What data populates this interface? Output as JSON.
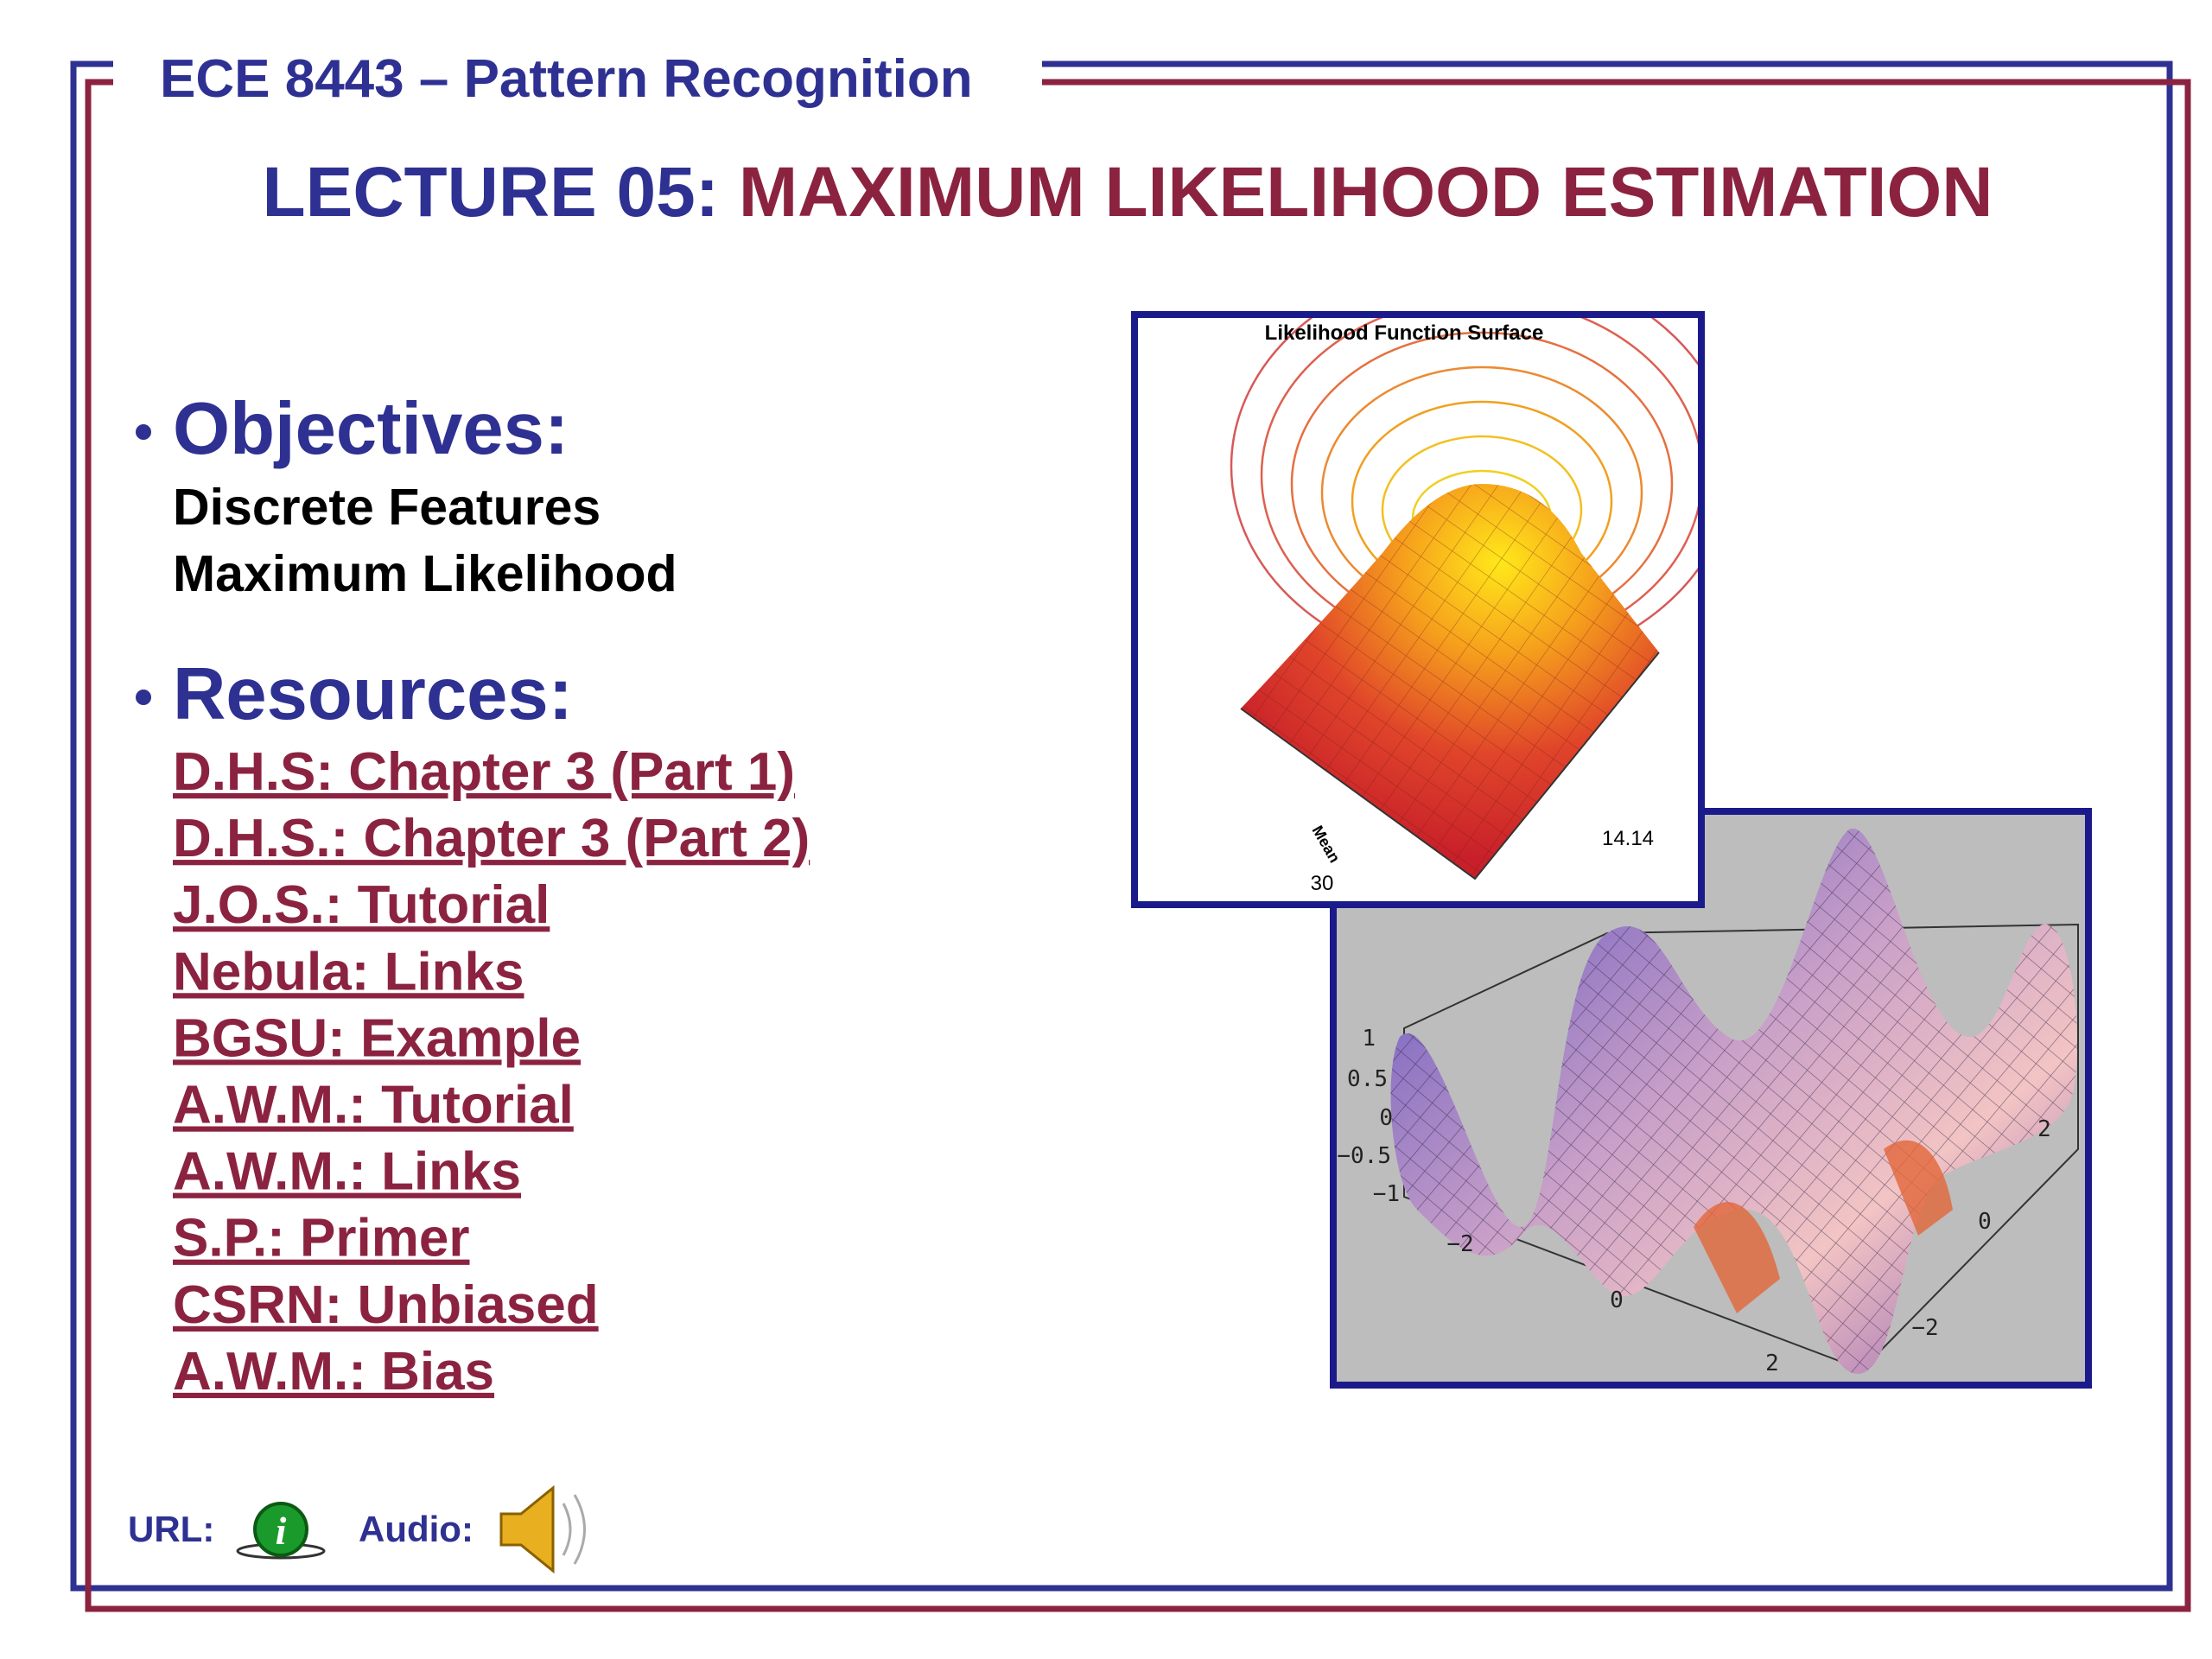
{
  "header": {
    "course": "ECE 8443 – Pattern Recognition",
    "title_prefix": "LECTURE 05:",
    "title": "MAXIMUM LIKELIHOOD ESTIMATION"
  },
  "objectives": {
    "heading": "Objectives:",
    "items": [
      "Discrete Features",
      "Maximum Likelihood"
    ]
  },
  "resources": {
    "heading": "Resources:",
    "links": [
      "D.H.S: Chapter 3 (Part 1)",
      "D.H.S.: Chapter 3 (Part 2)",
      "J.O.S.: Tutorial",
      "Nebula: Links",
      "BGSU: Example",
      "A.W.M.: Tutorial",
      "A.W.M.: Links",
      "S.P.: Primer",
      "CSRN: Unbiased",
      "A.W.M.: Bias"
    ]
  },
  "footer": {
    "url_label": "URL:",
    "audio_label": "Audio:"
  },
  "figures": [
    {
      "title": "Likelihood Function Surface",
      "labels": [
        "Mean",
        "30",
        "14.14"
      ]
    },
    {
      "labels": [
        "1",
        "0.5",
        "0",
        "−0.5",
        "−1",
        "−2",
        "0",
        "2",
        "2",
        "0",
        "−2"
      ]
    }
  ]
}
